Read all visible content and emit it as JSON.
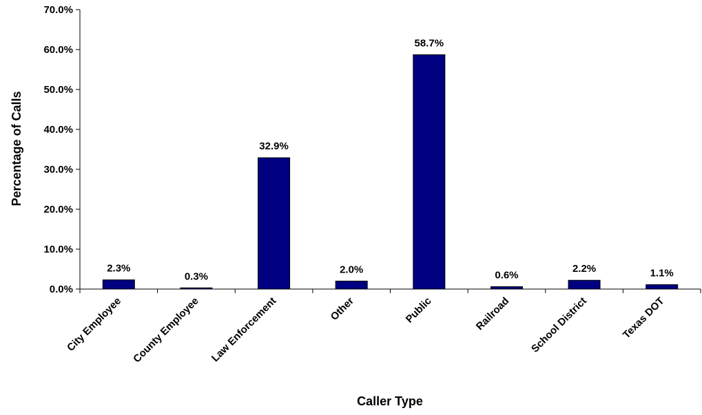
{
  "chart_data": {
    "type": "bar",
    "title": "",
    "xlabel": "Caller Type",
    "ylabel": "Percentage of Calls",
    "ylim": [
      0,
      70
    ],
    "yticks": [
      "0.0%",
      "10.0%",
      "20.0%",
      "30.0%",
      "40.0%",
      "50.0%",
      "60.0%",
      "70.0%"
    ],
    "categories": [
      "City Employee",
      "County Employee",
      "Law Enforcement",
      "Other",
      "Public",
      "Railroad",
      "School District",
      "Texas DOT"
    ],
    "values": [
      2.3,
      0.3,
      32.9,
      2.0,
      58.7,
      0.6,
      2.2,
      1.1
    ],
    "data_labels": [
      "2.3%",
      "0.3%",
      "32.9%",
      "2.0%",
      "58.7%",
      "0.6%",
      "2.2%",
      "1.1%"
    ],
    "bar_color": "#000080",
    "grid": false,
    "legend": "none"
  }
}
